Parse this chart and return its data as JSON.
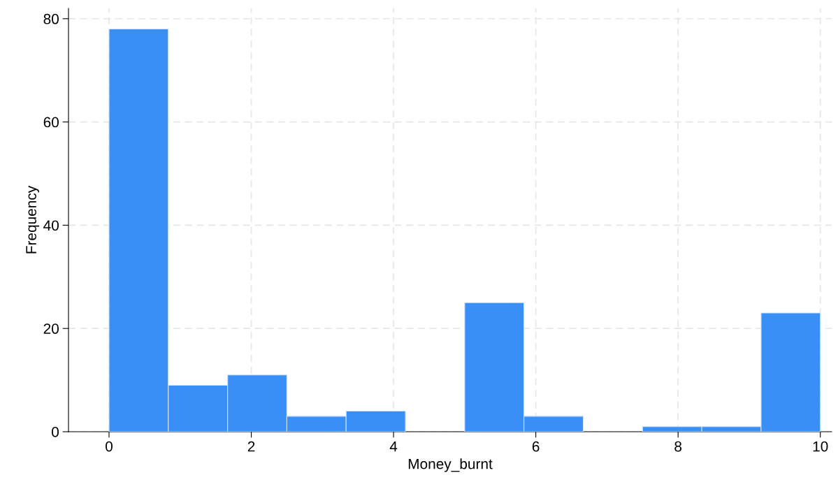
{
  "chart_data": {
    "type": "histogram",
    "xlabel": "Money_burnt",
    "ylabel": "Frequency",
    "bins": [
      0,
      0.833,
      1.667,
      2.5,
      3.333,
      4.167,
      5,
      5.833,
      6.667,
      7.5,
      8.333,
      9.167,
      10
    ],
    "values": [
      78,
      9,
      11,
      3,
      4,
      0,
      25,
      3,
      0,
      1,
      1,
      23
    ],
    "color": "#3a8ff7",
    "xlim": [
      -0.57,
      10.16
    ],
    "xticks": [
      0,
      2,
      4,
      6,
      8,
      10
    ],
    "ylim": [
      0,
      82
    ],
    "yticks": [
      0,
      20,
      40,
      60,
      80
    ],
    "grid": true
  }
}
